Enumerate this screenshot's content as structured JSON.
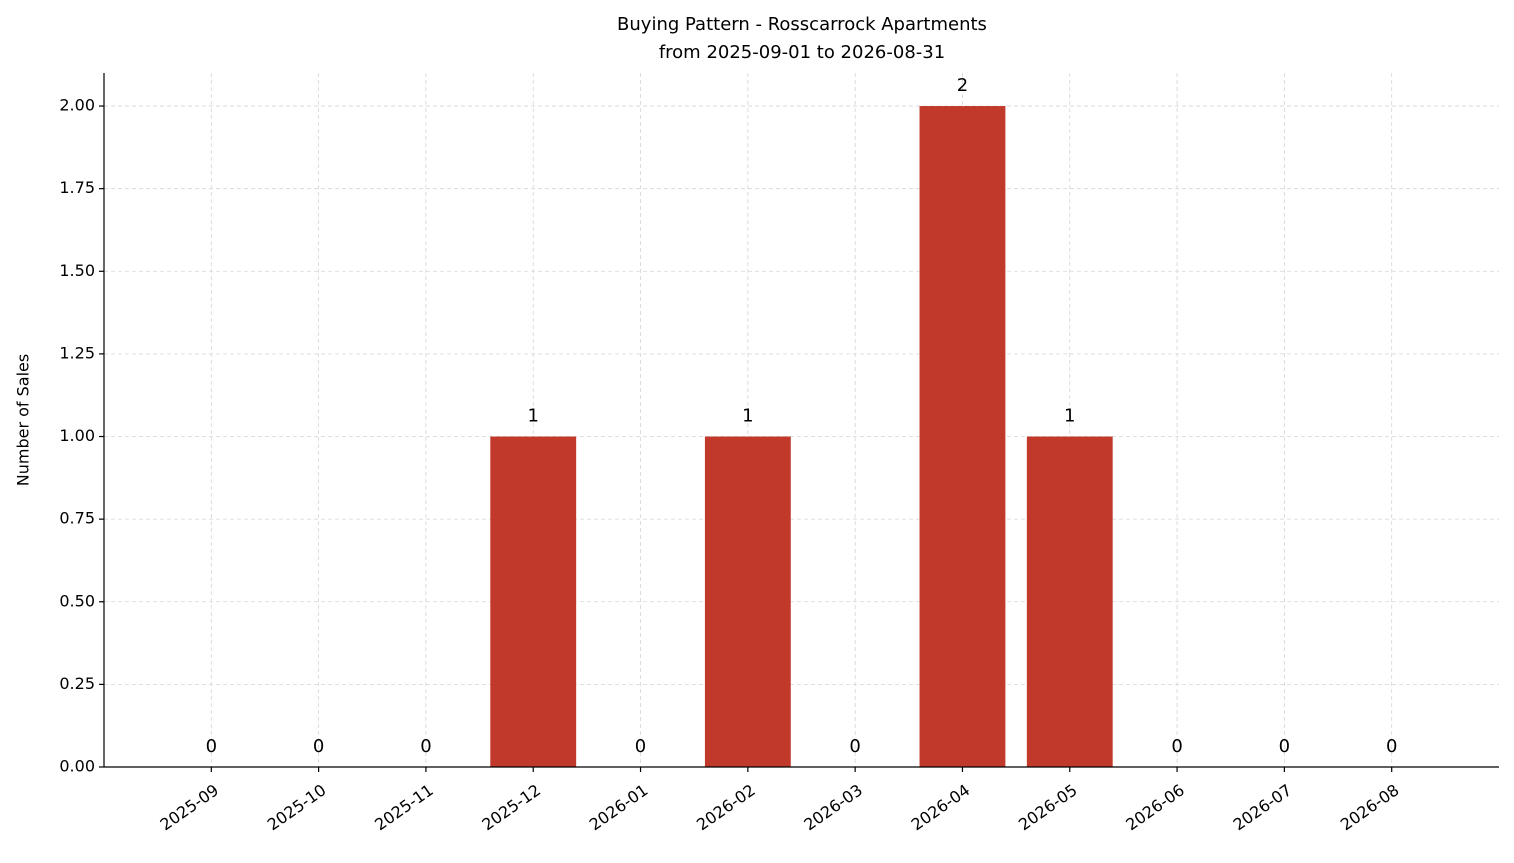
{
  "chart_data": {
    "type": "bar",
    "title": "Buying Pattern - Rosscarrock Apartments",
    "subtitle": "from 2025-09-01 to 2026-08-31",
    "y_label": "Number of Sales",
    "categories": [
      "2025-09",
      "2025-10",
      "2025-11",
      "2025-12",
      "2026-01",
      "2026-02",
      "2026-03",
      "2026-04",
      "2026-05",
      "2026-06",
      "2026-07",
      "2026-08"
    ],
    "values": [
      0,
      0,
      0,
      1,
      0,
      1,
      0,
      2,
      1,
      0,
      0,
      0
    ],
    "color": "#c0392b",
    "ylim": [
      0,
      2.1
    ],
    "yticks": [
      {
        "value": 0,
        "label": "0.00"
      },
      {
        "value": 0.25,
        "label": "0.25"
      },
      {
        "value": 0.5,
        "label": "0.50"
      },
      {
        "value": 0.75,
        "label": "0.75"
      },
      {
        "value": 1,
        "label": "1.00"
      },
      {
        "value": 1.25,
        "label": "1.25"
      },
      {
        "value": 1.5,
        "label": "1.50"
      },
      {
        "value": 1.75,
        "label": "1.75"
      },
      {
        "value": 2,
        "label": "2.00"
      }
    ],
    "grid": true
  }
}
